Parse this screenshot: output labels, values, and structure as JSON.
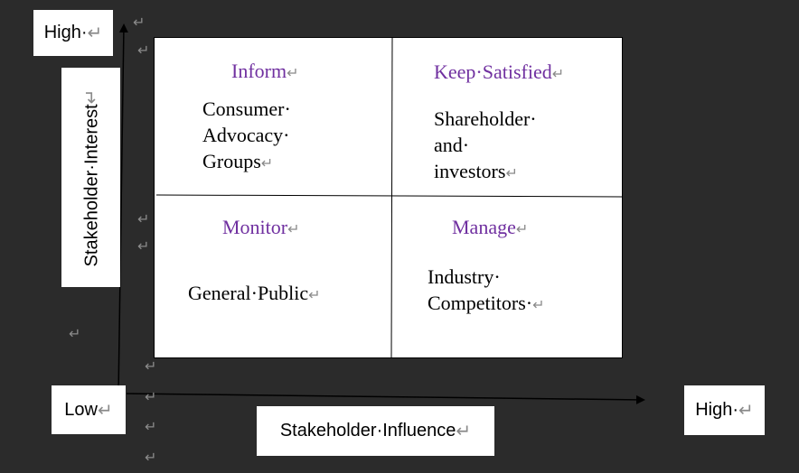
{
  "axes": {
    "y_high": "High·",
    "y_label": "Stakeholder·Interest",
    "x_low": "Low",
    "x_high": "High·",
    "x_label": "Stakeholder·Influence"
  },
  "paragraph_mark": "↵",
  "quadrants": {
    "top_left": {
      "title": "Inform",
      "lines": [
        "Consumer·",
        "Advocacy·",
        "Groups"
      ]
    },
    "top_right": {
      "title": "Keep·Satisfied",
      "lines": [
        "Shareholder·",
        "and·",
        "investors"
      ]
    },
    "bottom_left": {
      "title": "Monitor",
      "lines": [
        "General·Public"
      ]
    },
    "bottom_right": {
      "title": "Manage",
      "lines": [
        "Industry·",
        "Competitors·"
      ]
    }
  },
  "colors": {
    "title": "#7030a0",
    "background": "#2b2b2b",
    "mark": "#8a8a8a"
  }
}
